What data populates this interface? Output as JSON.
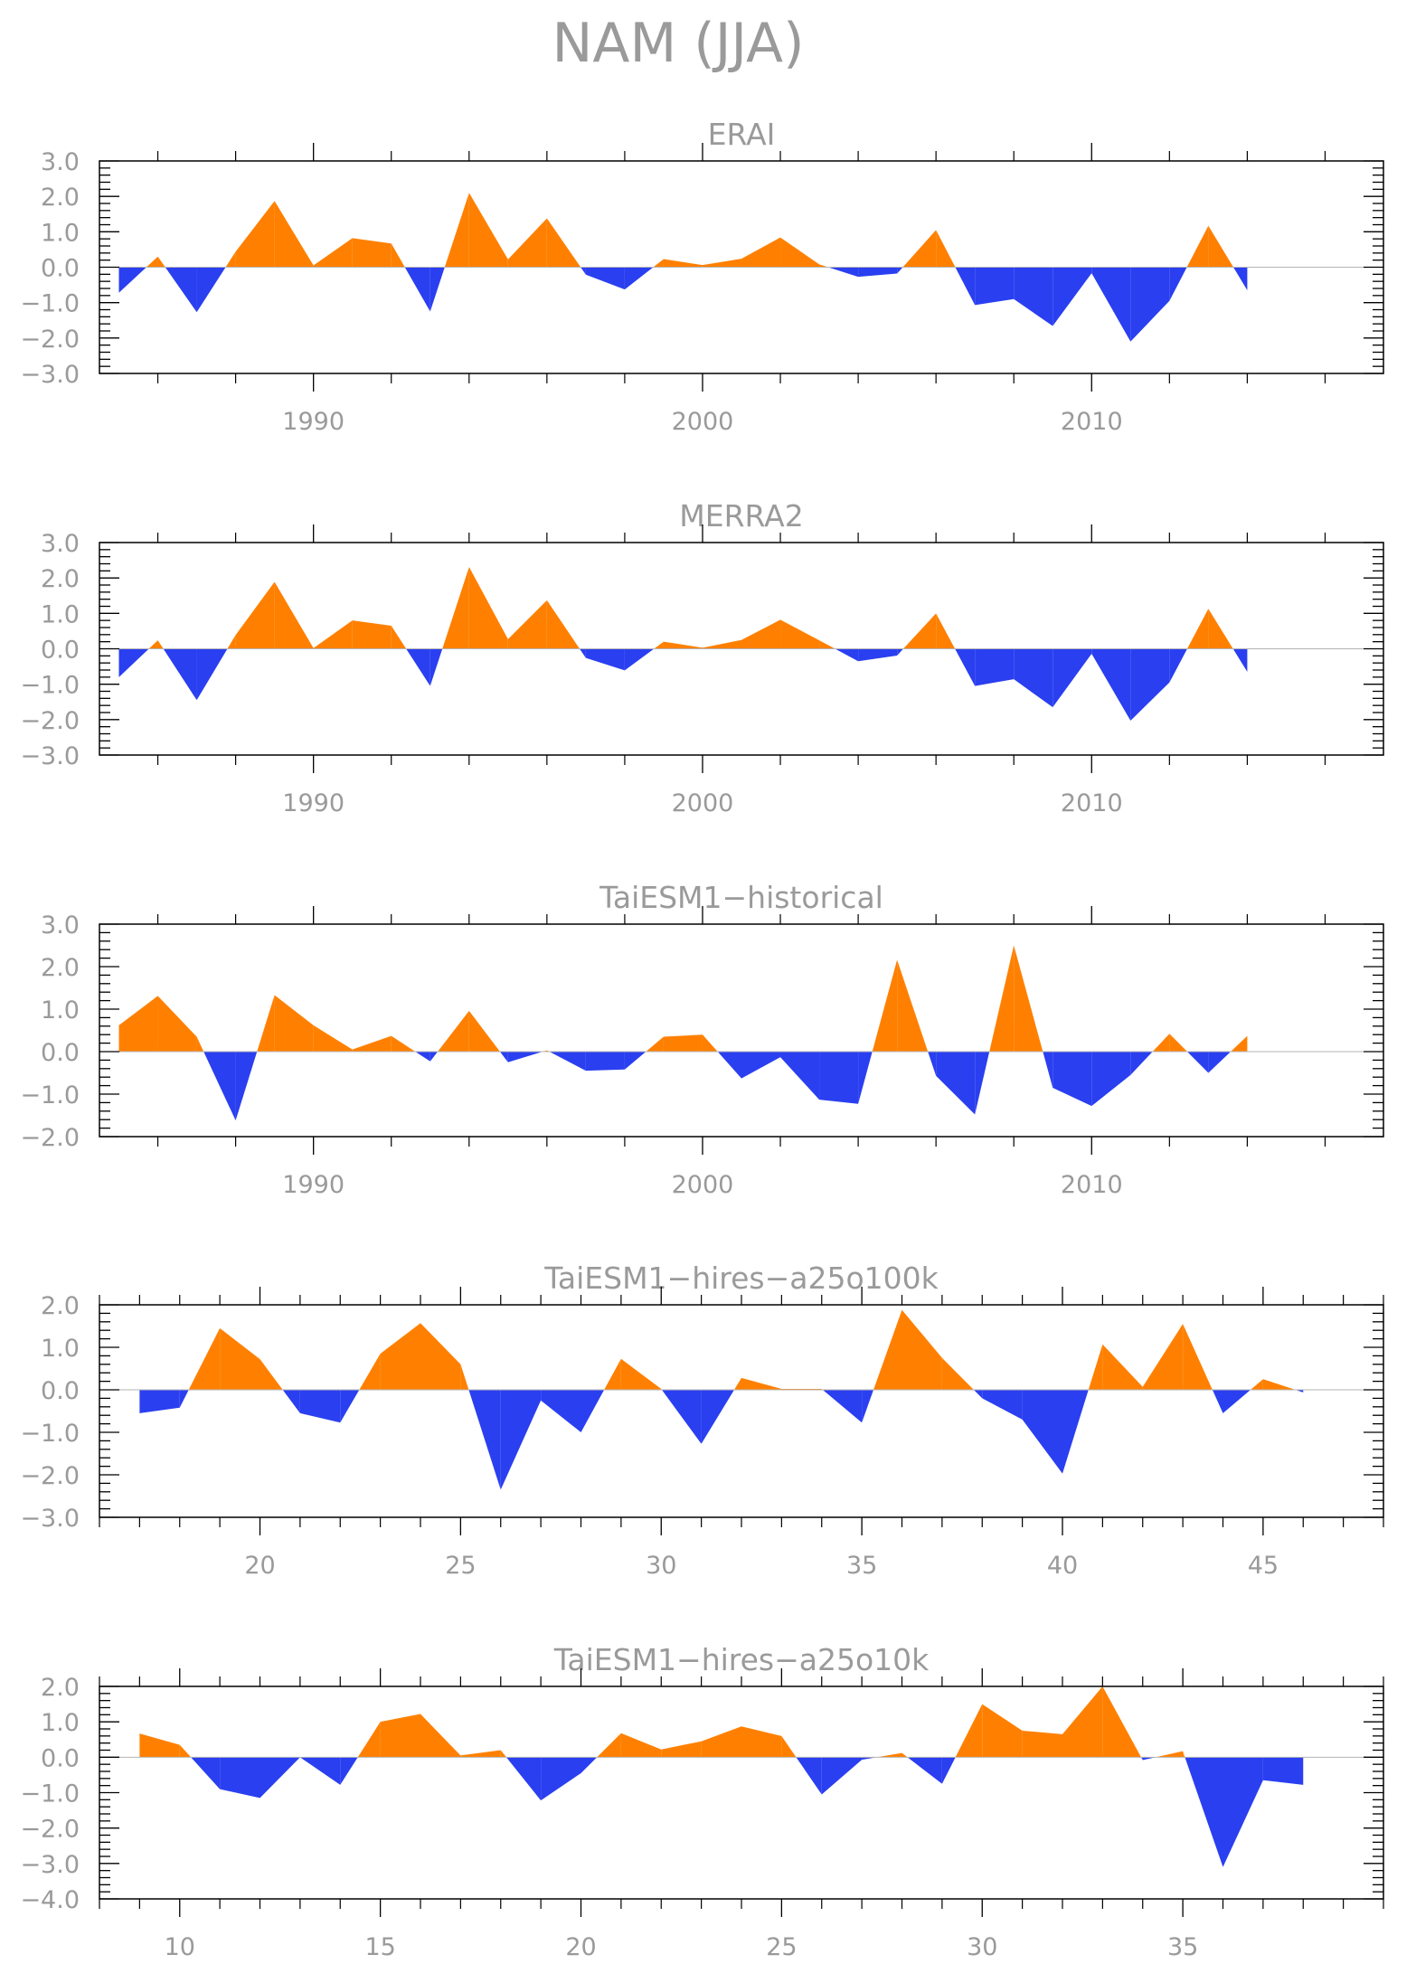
{
  "figure_title": "NAM (JJA)",
  "colors": {
    "positive": "#ff8000",
    "negative": "#2a3ff0",
    "frame": "#000000",
    "text": "#9a9a9a",
    "zero_line": "#b4b4b4"
  },
  "chart_data": [
    {
      "type": "area",
      "title": "ERAI",
      "xlim": [
        1984.5,
        2017.5
      ],
      "ylim": [
        -3,
        3
      ],
      "yticks": [
        -3,
        -2,
        -1,
        0,
        1,
        2,
        3
      ],
      "ytick_labels": [
        "−3.0",
        "−2.0",
        "−1.0",
        "0.0",
        "1.0",
        "2.0",
        "3.0"
      ],
      "xticks": [
        1990,
        2000,
        2010
      ],
      "xtick_labels": [
        "1990",
        "2000",
        "2010"
      ],
      "x": [
        1985,
        1986,
        1987,
        1988,
        1989,
        1990,
        1991,
        1992,
        1993,
        1994,
        1995,
        1996,
        1997,
        1998,
        1999,
        2000,
        2001,
        2002,
        2003,
        2004,
        2005,
        2006,
        2007,
        2008,
        2009,
        2010,
        2011,
        2012,
        2013,
        2014
      ],
      "values": [
        -0.72,
        0.3,
        -1.27,
        0.44,
        1.87,
        0.05,
        0.82,
        0.67,
        -1.25,
        2.1,
        0.22,
        1.38,
        -0.21,
        -0.63,
        0.23,
        0.06,
        0.24,
        0.84,
        0.08,
        -0.27,
        -0.18,
        1.05,
        -1.07,
        -0.9,
        -1.66,
        -0.17,
        -2.1,
        -0.95,
        1.17,
        -0.65
      ]
    },
    {
      "type": "area",
      "title": "MERRA2",
      "xlim": [
        1984.5,
        2017.5
      ],
      "ylim": [
        -3,
        3
      ],
      "yticks": [
        -3,
        -2,
        -1,
        0,
        1,
        2,
        3
      ],
      "ytick_labels": [
        "−3.0",
        "−2.0",
        "−1.0",
        "0.0",
        "1.0",
        "2.0",
        "3.0"
      ],
      "xticks": [
        1990,
        2000,
        2010
      ],
      "xtick_labels": [
        "1990",
        "2000",
        "2010"
      ],
      "x": [
        1985,
        1986,
        1987,
        1988,
        1989,
        1990,
        1991,
        1992,
        1993,
        1994,
        1995,
        1996,
        1997,
        1998,
        1999,
        2000,
        2001,
        2002,
        2003,
        2004,
        2005,
        2006,
        2007,
        2008,
        2009,
        2010,
        2011,
        2012,
        2013,
        2014
      ],
      "values": [
        -0.8,
        0.24,
        -1.45,
        0.39,
        1.89,
        0.02,
        0.8,
        0.65,
        -1.05,
        2.31,
        0.27,
        1.37,
        -0.26,
        -0.61,
        0.2,
        0.03,
        0.25,
        0.82,
        0.24,
        -0.35,
        -0.19,
        1.0,
        -1.05,
        -0.86,
        -1.65,
        -0.14,
        -2.03,
        -0.95,
        1.13,
        -0.65
      ]
    },
    {
      "type": "area",
      "title": "TaiESM1−historical",
      "xlim": [
        1984.5,
        2017.5
      ],
      "ylim": [
        -2,
        3
      ],
      "yticks": [
        -2,
        -1,
        0,
        1,
        2,
        3
      ],
      "ytick_labels": [
        "−2.0",
        "−1.0",
        "0.0",
        "1.0",
        "2.0",
        "3.0"
      ],
      "xticks": [
        1990,
        2000,
        2010
      ],
      "xtick_labels": [
        "1990",
        "2000",
        "2010"
      ],
      "x": [
        1985,
        1986,
        1987,
        1988,
        1989,
        1990,
        1991,
        1992,
        1993,
        1994,
        1995,
        1996,
        1997,
        1998,
        1999,
        2000,
        2001,
        2002,
        2003,
        2004,
        2005,
        2006,
        2007,
        2008,
        2009,
        2010,
        2011,
        2012,
        2013,
        2014
      ],
      "values": [
        0.62,
        1.31,
        0.35,
        -1.62,
        1.33,
        0.62,
        0.05,
        0.37,
        -0.23,
        0.96,
        -0.25,
        0.03,
        -0.45,
        -0.42,
        0.35,
        0.4,
        -0.63,
        -0.13,
        -1.13,
        -1.23,
        2.16,
        -0.57,
        -1.48,
        2.5,
        -0.85,
        -1.28,
        -0.55,
        0.42,
        -0.5,
        0.37
      ]
    },
    {
      "type": "area",
      "title": "TaiESM1−hires−a25o100k",
      "xlim": [
        16,
        48
      ],
      "ylim": [
        -3,
        2
      ],
      "yticks": [
        -3,
        -2,
        -1,
        0,
        1,
        2
      ],
      "ytick_labels": [
        "−3.0",
        "−2.0",
        "−1.0",
        "0.0",
        "1.0",
        "2.0"
      ],
      "xticks": [
        20,
        25,
        30,
        35,
        40,
        45
      ],
      "xtick_labels": [
        "20",
        "25",
        "30",
        "35",
        "40",
        "45"
      ],
      "x": [
        17,
        18,
        19,
        20,
        21,
        22,
        23,
        24,
        25,
        26,
        27,
        28,
        29,
        30,
        31,
        32,
        33,
        34,
        35,
        36,
        37,
        38,
        39,
        40,
        41,
        42,
        43,
        44,
        45,
        46
      ],
      "values": [
        -0.55,
        -0.42,
        1.45,
        0.72,
        -0.55,
        -0.77,
        0.85,
        1.57,
        0.6,
        -2.35,
        -0.25,
        -1.0,
        0.73,
        0.02,
        -1.27,
        0.28,
        0.02,
        0.02,
        -0.77,
        1.88,
        0.75,
        -0.2,
        -0.7,
        -1.97,
        1.07,
        0.07,
        1.55,
        -0.55,
        0.25,
        -0.06
      ]
    },
    {
      "type": "area",
      "title": "TaiESM1−hires−a25o10k",
      "xlim": [
        8,
        40
      ],
      "ylim": [
        -4,
        2
      ],
      "yticks": [
        -4,
        -3,
        -2,
        -1,
        0,
        1,
        2
      ],
      "ytick_labels": [
        "−4.0",
        "−3.0",
        "−2.0",
        "−1.0",
        "0.0",
        "1.0",
        "2.0"
      ],
      "xticks": [
        10,
        15,
        20,
        25,
        30,
        35
      ],
      "xtick_labels": [
        "10",
        "15",
        "20",
        "25",
        "30",
        "35"
      ],
      "x": [
        9,
        10,
        11,
        12,
        13,
        14,
        15,
        16,
        17,
        18,
        19,
        20,
        21,
        22,
        23,
        24,
        25,
        26,
        27,
        28,
        29,
        30,
        31,
        32,
        33,
        34,
        35,
        36,
        37,
        38
      ],
      "values": [
        0.67,
        0.35,
        -0.9,
        -1.15,
        0.0,
        -0.78,
        1.0,
        1.22,
        0.05,
        0.2,
        -1.22,
        -0.45,
        0.68,
        0.22,
        0.45,
        0.87,
        0.6,
        -1.05,
        -0.07,
        0.12,
        -0.75,
        1.5,
        0.75,
        0.65,
        2.0,
        -0.08,
        0.17,
        -3.1,
        -0.65,
        -0.78
      ]
    }
  ]
}
